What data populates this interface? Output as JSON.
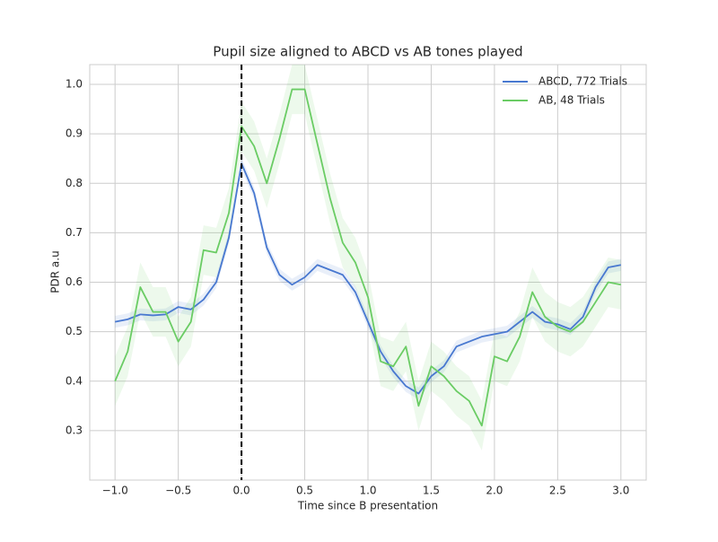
{
  "chart_data": {
    "type": "line",
    "title": "Pupil size aligned to ABCD vs AB tones played",
    "x_label": "Time since B presentation",
    "y_label": "PDR a.u",
    "x": [
      -1.0,
      -0.9,
      -0.8,
      -0.7,
      -0.6,
      -0.5,
      -0.4,
      -0.3,
      -0.2,
      -0.1,
      0.0,
      0.1,
      0.2,
      0.3,
      0.4,
      0.5,
      0.6,
      0.7,
      0.8,
      0.9,
      1.0,
      1.1,
      1.2,
      1.3,
      1.4,
      1.5,
      1.6,
      1.7,
      1.8,
      1.9,
      2.0,
      2.1,
      2.2,
      2.3,
      2.4,
      2.5,
      2.6,
      2.7,
      2.8,
      2.9,
      3.0
    ],
    "series": [
      {
        "name": "ABCD, 772 Trials",
        "color": "#4878d0",
        "error": 0.012,
        "values": [
          0.52,
          0.525,
          0.535,
          0.533,
          0.535,
          0.55,
          0.545,
          0.565,
          0.6,
          0.69,
          0.84,
          0.78,
          0.67,
          0.615,
          0.595,
          0.61,
          0.635,
          0.625,
          0.615,
          0.58,
          0.52,
          0.46,
          0.42,
          0.39,
          0.375,
          0.41,
          0.43,
          0.47,
          0.48,
          0.49,
          0.495,
          0.5,
          0.52,
          0.54,
          0.52,
          0.515,
          0.505,
          0.53,
          0.59,
          0.63,
          0.635
        ]
      },
      {
        "name": "AB, 48 Trials",
        "color": "#6acc64",
        "error": 0.05,
        "values": [
          0.4,
          0.46,
          0.59,
          0.54,
          0.54,
          0.48,
          0.52,
          0.665,
          0.66,
          0.74,
          0.915,
          0.875,
          0.8,
          0.89,
          0.99,
          0.99,
          0.88,
          0.77,
          0.68,
          0.64,
          0.57,
          0.44,
          0.43,
          0.47,
          0.35,
          0.43,
          0.41,
          0.38,
          0.36,
          0.31,
          0.45,
          0.44,
          0.49,
          0.58,
          0.53,
          0.51,
          0.5,
          0.52,
          0.56,
          0.6,
          0.595
        ]
      }
    ],
    "vline": 0,
    "xlim": [
      -1.2,
      3.2
    ],
    "ylim": [
      0.2,
      1.04
    ],
    "xticks": [
      {
        "value": -1,
        "label": "−1.0"
      },
      {
        "value": -0.5,
        "label": "−0.5"
      },
      {
        "value": 0,
        "label": "0.0"
      },
      {
        "value": 0.5,
        "label": "0.5"
      },
      {
        "value": 1,
        "label": "1.0"
      },
      {
        "value": 1.5,
        "label": "1.5"
      },
      {
        "value": 2,
        "label": "2.0"
      },
      {
        "value": 2.5,
        "label": "2.5"
      },
      {
        "value": 3,
        "label": "3.0"
      }
    ],
    "yticks": [
      0.3,
      0.4,
      0.5,
      0.6,
      0.7,
      0.8,
      0.9,
      {
        "value": 1,
        "label": "1.0"
      }
    ],
    "grid": true,
    "legend": "upper-right"
  }
}
